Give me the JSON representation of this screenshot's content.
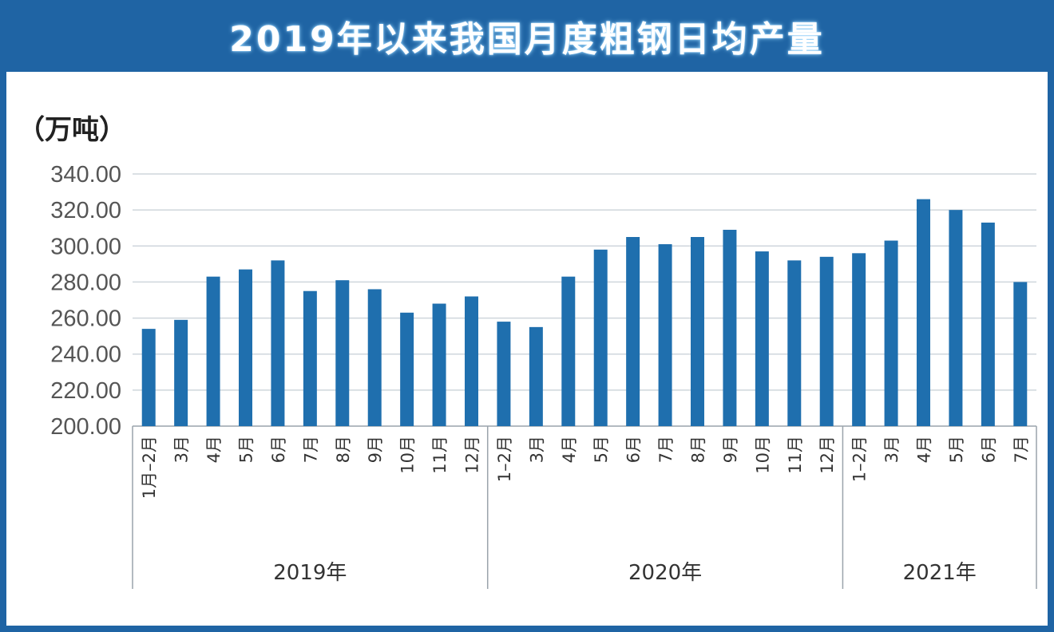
{
  "title": "2019年以来我国月度粗钢日均产量",
  "colors": {
    "frame": "#1f64a4",
    "bar": "#1f6fae",
    "grid": "#cfd6dc",
    "axis": "#9aa3ab"
  },
  "chart_data": {
    "type": "bar",
    "title": "2019年以来我国月度粗钢日均产量",
    "ylabel": "（万吨）",
    "ylim": [
      200,
      340
    ],
    "yticks": [
      "200.00",
      "220.00",
      "240.00",
      "260.00",
      "280.00",
      "300.00",
      "320.00",
      "340.00"
    ],
    "grid": true,
    "categories": [
      "1月–2月",
      "3月",
      "4月",
      "5月",
      "6月",
      "7月",
      "8月",
      "9月",
      "10月",
      "11月",
      "12月",
      "1–2月",
      "3月",
      "4月",
      "5月",
      "6月",
      "7月",
      "8月",
      "9月",
      "10月",
      "11月",
      "12月",
      "1–2月",
      "3月",
      "4月",
      "5月",
      "6月",
      "7月"
    ],
    "values": [
      254,
      259,
      283,
      287,
      292,
      275,
      281,
      276,
      263,
      268,
      272,
      258,
      255,
      283,
      298,
      305,
      301,
      305,
      309,
      297,
      292,
      294,
      296,
      303,
      326,
      320,
      313,
      280
    ],
    "groups": [
      {
        "label": "2019年",
        "count": 11
      },
      {
        "label": "2020年",
        "count": 11
      },
      {
        "label": "2021年",
        "count": 6
      }
    ]
  }
}
